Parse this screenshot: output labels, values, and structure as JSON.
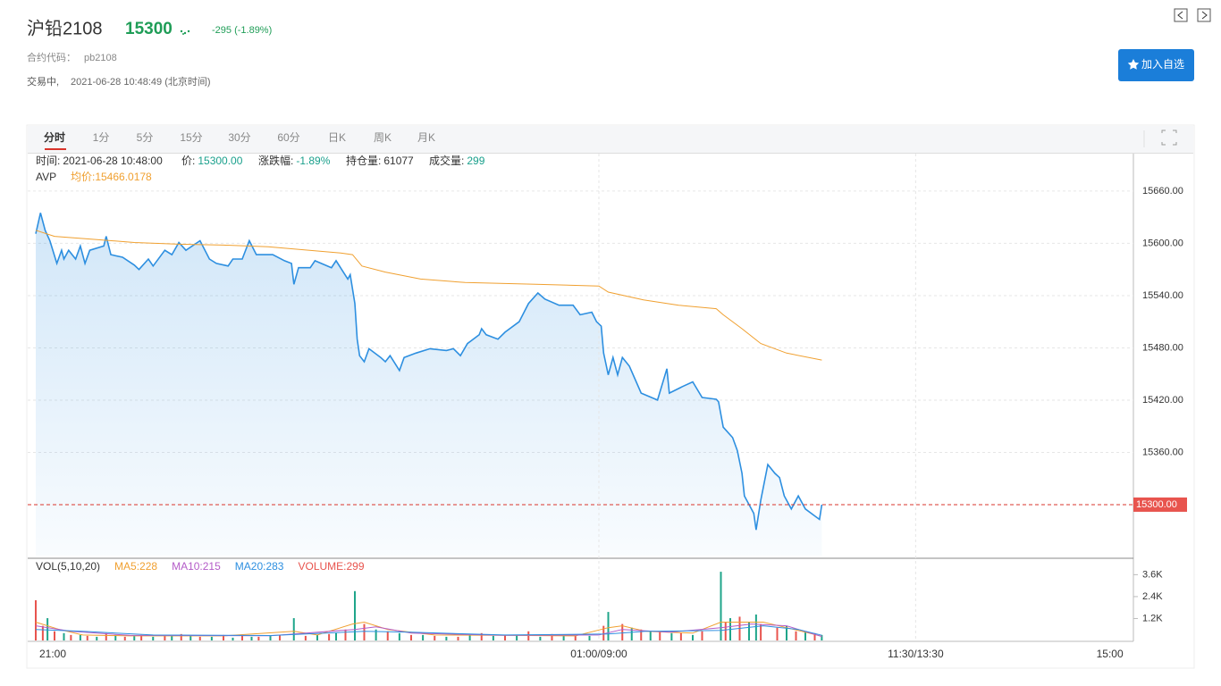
{
  "header": {
    "name": "沪铅2108",
    "price": "15300",
    "change": "-295 (-1.89%)",
    "code_label": "合约代码：",
    "code": "pb2108",
    "status": "交易中,",
    "time": "2021-06-28 10:48:49 (北京时间)",
    "button": "加入自选"
  },
  "tabs": [
    "分时",
    "1分",
    "5分",
    "15分",
    "30分",
    "60分",
    "日K",
    "周K",
    "月K"
  ],
  "info": [
    {
      "label": "时间:",
      "value": "2021-06-28 10:48:00"
    },
    {
      "label": "价:",
      "value": "15300.00"
    },
    {
      "label": "涨跌幅:",
      "value": "-1.89%"
    },
    {
      "label": "持仓量:",
      "value": "61077"
    },
    {
      "label": "成交量:",
      "value": "299"
    }
  ],
  "avp": "AVP",
  "avg_label": "均价:15466.0178",
  "chart_data": [
    {
      "type": "line",
      "xlim": [
        0,
        465
      ],
      "ylim": [
        15241.5,
        15703
      ],
      "yticks": [
        {
          "value": 15360,
          "label": "15360.00"
        },
        {
          "value": 15420,
          "label": "15420.00"
        },
        {
          "value": 15480,
          "label": "15480.00"
        },
        {
          "value": 15540,
          "label": "15540.00"
        },
        {
          "value": 15600,
          "label": "15600.00"
        },
        {
          "value": 15660,
          "label": "15660.00"
        }
      ],
      "grid": true,
      "last_price": {
        "value": 15300,
        "label": "15300.00"
      },
      "series": [
        {
          "color": "#2d8fe0",
          "area_fill": true,
          "x": [
            0,
            2,
            4,
            6,
            9,
            11,
            12,
            14,
            17,
            19,
            21,
            23,
            29,
            30,
            32,
            37,
            42,
            44,
            48,
            50,
            55,
            58,
            61,
            64,
            70,
            74,
            77,
            82,
            84,
            88,
            91,
            94,
            101,
            106,
            109,
            110,
            112,
            117,
            119,
            126,
            128,
            133,
            134,
            136,
            137,
            138,
            140,
            142,
            147,
            149,
            151,
            155,
            157,
            162,
            168,
            175,
            178,
            181,
            184,
            189,
            190,
            192,
            197,
            200,
            206,
            210,
            214,
            217,
            223,
            229,
            232,
            237,
            239,
            241,
            242,
            244,
            246,
            248,
            250,
            253,
            258,
            265,
            269,
            270,
            276,
            280,
            284,
            290,
            291,
            293,
            297,
            299,
            301,
            302,
            306,
            307,
            309,
            312,
            315,
            317,
            319,
            322,
            325,
            328,
            332,
            334,
            335
          ],
          "values": [
            15611,
            15635,
            15615,
            15603,
            15577,
            15592,
            15582,
            15592,
            15582,
            15597,
            15577,
            15592,
            15597,
            15608,
            15587,
            15584,
            15575,
            15570,
            15582,
            15574,
            15592,
            15587,
            15601,
            15592,
            15603,
            15582,
            15577,
            15574,
            15582,
            15582,
            15603,
            15587,
            15587,
            15580,
            15577,
            15553,
            15572,
            15572,
            15580,
            15572,
            15580,
            15559,
            15564,
            15531,
            15490,
            15471,
            15464,
            15479,
            15469,
            15464,
            15471,
            15454,
            15469,
            15474,
            15479,
            15477,
            15479,
            15471,
            15485,
            15495,
            15502,
            15495,
            15490,
            15498,
            15510,
            15531,
            15543,
            15536,
            15529,
            15529,
            15518,
            15521,
            15510,
            15505,
            15474,
            15449,
            15469,
            15449,
            15469,
            15459,
            15428,
            15420,
            15456,
            15428,
            15436,
            15441,
            15423,
            15421,
            15418,
            15389,
            15377,
            15362,
            15336,
            15310,
            15290,
            15271,
            15305,
            15346,
            15336,
            15331,
            15310,
            15295,
            15310,
            15295,
            15287,
            15283,
            15300
          ]
        },
        {
          "color": "#f0a030",
          "x": [
            0,
            8,
            23,
            42,
            61,
            80,
            99,
            130,
            135,
            139,
            149,
            164,
            183,
            213,
            240,
            244,
            259,
            274,
            290,
            293,
            301,
            309,
            320,
            335
          ],
          "values": [
            15615,
            15608,
            15605,
            15601,
            15599,
            15598,
            15596,
            15589,
            15587,
            15574,
            15567,
            15559,
            15555,
            15553,
            15551,
            15544,
            15535,
            15529,
            15525,
            15518,
            15502,
            15485,
            15474,
            15466
          ]
        }
      ]
    },
    {
      "type": "bar",
      "xlim": [
        0,
        465
      ],
      "ylim": [
        0,
        4400
      ],
      "yticks": [
        {
          "value": 1200,
          "label": "1.2K"
        },
        {
          "value": 2400,
          "label": "2.4K"
        },
        {
          "value": 3600,
          "label": "3.6K"
        }
      ],
      "xticks": [
        {
          "value": 0,
          "label": "21:00"
        },
        {
          "value": 240,
          "label": "01:00/09:00"
        },
        {
          "value": 375,
          "label": "11:30/13:30"
        },
        {
          "value": 465,
          "label": "15:00"
        }
      ],
      "indicator": "VOL(5,10,20)",
      "volume_label": "VOLUME:299",
      "series": [
        {
          "type": "bar",
          "color": "#e8544e",
          "x": [
            0,
            3,
            8,
            15,
            22,
            30,
            38,
            45,
            55,
            62,
            70,
            80,
            88,
            95,
            104,
            115,
            125,
            132,
            140,
            150,
            160,
            170,
            180,
            190,
            200,
            210,
            220,
            230,
            242,
            250,
            258,
            266,
            275,
            284,
            294,
            300,
            309,
            316,
            324,
            332
          ],
          "values": [
            2200,
            800,
            500,
            300,
            250,
            400,
            200,
            300,
            250,
            350,
            200,
            300,
            250,
            200,
            300,
            250,
            350,
            600,
            900,
            500,
            300,
            250,
            200,
            400,
            300,
            500,
            350,
            250,
            800,
            900,
            600,
            500,
            400,
            500,
            1000,
            1300,
            900,
            700,
            500,
            400
          ]
        },
        {
          "type": "bar",
          "color": "#1fa58a",
          "x": [
            5,
            12,
            19,
            26,
            34,
            42,
            50,
            58,
            66,
            75,
            84,
            92,
            100,
            110,
            120,
            128,
            136,
            145,
            155,
            165,
            175,
            185,
            195,
            205,
            215,
            225,
            236,
            244,
            254,
            262,
            271,
            280,
            292,
            296,
            304,
            307,
            320,
            328,
            335
          ],
          "values": [
            1220,
            400,
            300,
            200,
            300,
            250,
            200,
            300,
            250,
            200,
            150,
            200,
            250,
            1220,
            300,
            400,
            2700,
            600,
            400,
            300,
            200,
            300,
            250,
            300,
            200,
            300,
            250,
            1560,
            700,
            500,
            400,
            300,
            3760,
            1220,
            1000,
            1420,
            800,
            500,
            299
          ]
        },
        {
          "type": "line",
          "name": "MA5:228",
          "color": "#f0a030",
          "x": [
            0,
            10,
            20,
            40,
            80,
            110,
            120,
            135,
            140,
            150,
            170,
            200,
            230,
            244,
            250,
            260,
            280,
            292,
            300,
            310,
            320,
            335
          ],
          "values": [
            1000,
            600,
            300,
            250,
            250,
            500,
            300,
            900,
            1000,
            600,
            300,
            280,
            250,
            700,
            800,
            500,
            400,
            1000,
            1000,
            1000,
            700,
            228
          ]
        },
        {
          "type": "line",
          "name": "MA10:215",
          "color": "#b45cc8",
          "x": [
            0,
            15,
            40,
            100,
            136,
            145,
            160,
            200,
            240,
            250,
            270,
            292,
            305,
            320,
            335
          ],
          "values": [
            800,
            500,
            280,
            260,
            600,
            750,
            400,
            280,
            300,
            600,
            450,
            700,
            900,
            800,
            215
          ]
        },
        {
          "type": "line",
          "name": "MA20:283",
          "color": "#2d8fe0",
          "x": [
            0,
            20,
            50,
            100,
            140,
            160,
            200,
            244,
            260,
            292,
            310,
            325,
            335
          ],
          "values": [
            600,
            500,
            300,
            270,
            500,
            450,
            300,
            350,
            500,
            550,
            800,
            600,
            283
          ]
        }
      ]
    }
  ]
}
